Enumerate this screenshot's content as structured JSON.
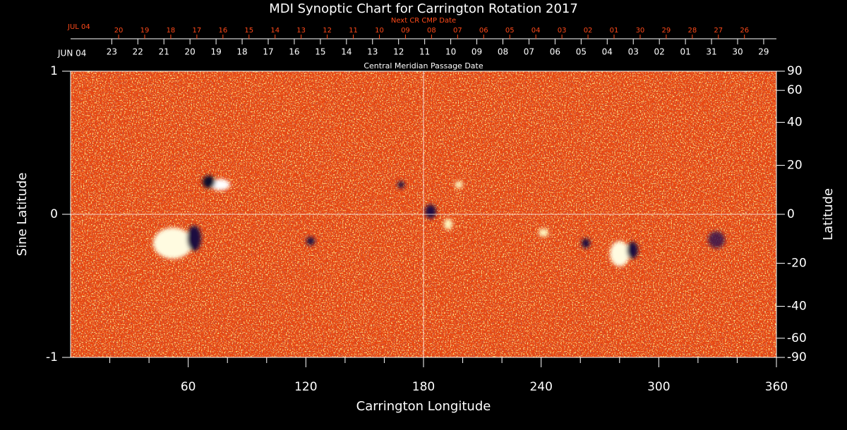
{
  "chart_data": {
    "type": "synoptic-map",
    "title": "MDI Synoptic Chart for Carrington Rotation 2017",
    "xlabel": "Carrington Longitude",
    "ylabel": "Sine Latitude",
    "y2label": "Latitude",
    "xlim": [
      0,
      360
    ],
    "xticks": [
      60,
      120,
      180,
      240,
      300,
      360
    ],
    "xminorticks": [
      20,
      40,
      80,
      100,
      140,
      160,
      200,
      220,
      260,
      280,
      320,
      340
    ],
    "ylim": [
      -1,
      1
    ],
    "yticks": [
      -1,
      0,
      1
    ],
    "y2scale": "sine",
    "y2lim": [
      -90,
      90
    ],
    "y2ticks": [
      90,
      60,
      40,
      20,
      0,
      -20,
      -40,
      -60,
      -90
    ],
    "crosshair": true,
    "cmp_dates": {
      "title": "Central Meridian Passage Date",
      "start_label": "JUN 04",
      "color": "#ffffff",
      "ticks": [
        {
          "value": 21,
          "label": "23"
        },
        {
          "value": 34.3,
          "label": "22"
        },
        {
          "value": 47.6,
          "label": "21"
        },
        {
          "value": 60.9,
          "label": "20"
        },
        {
          "value": 74.2,
          "label": "19"
        },
        {
          "value": 87.5,
          "label": "18"
        },
        {
          "value": 100.8,
          "label": "17"
        },
        {
          "value": 114.1,
          "label": "16"
        },
        {
          "value": 127.4,
          "label": "15"
        },
        {
          "value": 140.7,
          "label": "14"
        },
        {
          "value": 154,
          "label": "13"
        },
        {
          "value": 167.3,
          "label": "12"
        },
        {
          "value": 180.6,
          "label": "11"
        },
        {
          "value": 193.9,
          "label": "10"
        },
        {
          "value": 207.2,
          "label": "09"
        },
        {
          "value": 220.5,
          "label": "08"
        },
        {
          "value": 233.8,
          "label": "07"
        },
        {
          "value": 247.1,
          "label": "06"
        },
        {
          "value": 260.4,
          "label": "05"
        },
        {
          "value": 273.7,
          "label": "04"
        },
        {
          "value": 287,
          "label": "03"
        },
        {
          "value": 300.3,
          "label": "02"
        },
        {
          "value": 313.6,
          "label": "01"
        },
        {
          "value": 326.9,
          "label": "31"
        },
        {
          "value": 340.2,
          "label": "30"
        },
        {
          "value": 353.5,
          "label": "29"
        }
      ]
    },
    "next_cr_dates": {
      "title": "Next CR CMP Date",
      "start_label": "JUL 04",
      "color": "#ff4a1a",
      "ticks": [
        {
          "value": 24.5,
          "label": "20"
        },
        {
          "value": 37.8,
          "label": "19"
        },
        {
          "value": 51.1,
          "label": "18"
        },
        {
          "value": 64.4,
          "label": "17"
        },
        {
          "value": 77.7,
          "label": "16"
        },
        {
          "value": 91,
          "label": "15"
        },
        {
          "value": 104.3,
          "label": "14"
        },
        {
          "value": 117.6,
          "label": "13"
        },
        {
          "value": 130.9,
          "label": "12"
        },
        {
          "value": 144.2,
          "label": "11"
        },
        {
          "value": 157.5,
          "label": "10"
        },
        {
          "value": 170.8,
          "label": "09"
        },
        {
          "value": 184.1,
          "label": "08"
        },
        {
          "value": 197.4,
          "label": "07"
        },
        {
          "value": 210.7,
          "label": "06"
        },
        {
          "value": 224,
          "label": "05"
        },
        {
          "value": 237.3,
          "label": "04"
        },
        {
          "value": 250.6,
          "label": "03"
        },
        {
          "value": 263.9,
          "label": "02"
        },
        {
          "value": 277.2,
          "label": "01"
        },
        {
          "value": 290.5,
          "label": "30"
        },
        {
          "value": 303.8,
          "label": "29"
        },
        {
          "value": 317.1,
          "label": "28"
        },
        {
          "value": 330.4,
          "label": "27"
        },
        {
          "value": 343.7,
          "label": "26"
        }
      ]
    }
  }
}
